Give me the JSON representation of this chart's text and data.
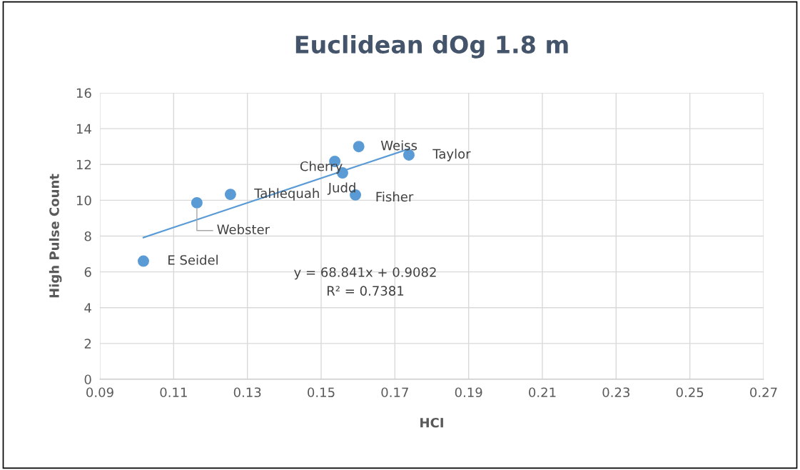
{
  "chart_data": {
    "type": "scatter",
    "title": "Euclidean dOg 1.8 m",
    "xlabel": "HCI",
    "ylabel": "High Pulse Count",
    "x": [
      0.1018,
      0.1163,
      0.1254,
      0.1537,
      0.1558,
      0.1602,
      0.1593,
      0.1738
    ],
    "series": [
      {
        "color": "#5b9bd5",
        "values": [
          6.6,
          9.86,
          10.33,
          12.17,
          11.53,
          13.0,
          10.3,
          12.53
        ]
      },
      {
        "type": "line",
        "marker": "none",
        "color": "#5b9bd5",
        "x": [
          0.1018,
          0.1738
        ],
        "values": [
          7.92,
          12.87
        ]
      }
    ],
    "annotations": [
      {
        "text": "E Seidel",
        "x": 0.1018,
        "y": 6.6
      },
      {
        "text": "Webster",
        "x": 0.1163,
        "y": 9.86
      },
      {
        "text": "Tahlequah",
        "x": 0.1254,
        "y": 10.33
      },
      {
        "text": "Cherry",
        "x": 0.1537,
        "y": 12.17
      },
      {
        "text": "Judd",
        "x": 0.1558,
        "y": 11.53
      },
      {
        "text": "Weiss",
        "x": 0.1602,
        "y": 13.0
      },
      {
        "text": "Fisher",
        "x": 0.1593,
        "y": 10.3
      },
      {
        "text": "Taylor",
        "x": 0.1738,
        "y": 12.53
      },
      "y = 68.841x + 0.9082",
      "R² = 0.7381"
    ],
    "xlim": [
      0.09,
      0.27
    ],
    "xticks": [
      {
        "value": 0.09,
        "label": "0.09"
      },
      {
        "value": 0.11,
        "label": "0.11"
      },
      {
        "value": 0.13,
        "label": "0.13"
      },
      {
        "value": 0.15,
        "label": "0.15"
      },
      {
        "value": 0.17,
        "label": "0.17"
      },
      {
        "value": 0.19,
        "label": "0.19"
      },
      {
        "value": 0.21,
        "label": "0.21"
      },
      {
        "value": 0.23,
        "label": "0.23"
      },
      {
        "value": 0.25,
        "label": "0.25"
      },
      {
        "value": 0.27,
        "label": "0.27"
      }
    ],
    "ylim": [
      0,
      16
    ],
    "yticks": [
      0,
      2,
      4,
      6,
      8,
      10,
      12,
      14,
      16
    ],
    "grid": true,
    "marker": "circle",
    "legend": false
  }
}
